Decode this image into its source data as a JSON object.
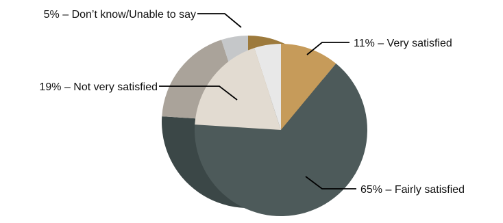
{
  "chart_data": {
    "type": "pie",
    "title": "",
    "slices": [
      {
        "key": "very",
        "value": 11,
        "label": "11% – Very satisfied",
        "color": "#c69b5a",
        "side": "#9d7a3c"
      },
      {
        "key": "fairly",
        "value": 65,
        "label": "65% – Fairly satisfied",
        "color": "#4d5a5a",
        "side": "#3b4747"
      },
      {
        "key": "notvery",
        "value": 19,
        "label": "19% – Not very satisfied",
        "color": "#e2dbd1",
        "side": "#aaa39a"
      },
      {
        "key": "dontknow",
        "value": 5,
        "label": "5% – Don’t know/Unable to say",
        "color": "#e8e8e8",
        "side": "#c5c7c9"
      }
    ]
  }
}
